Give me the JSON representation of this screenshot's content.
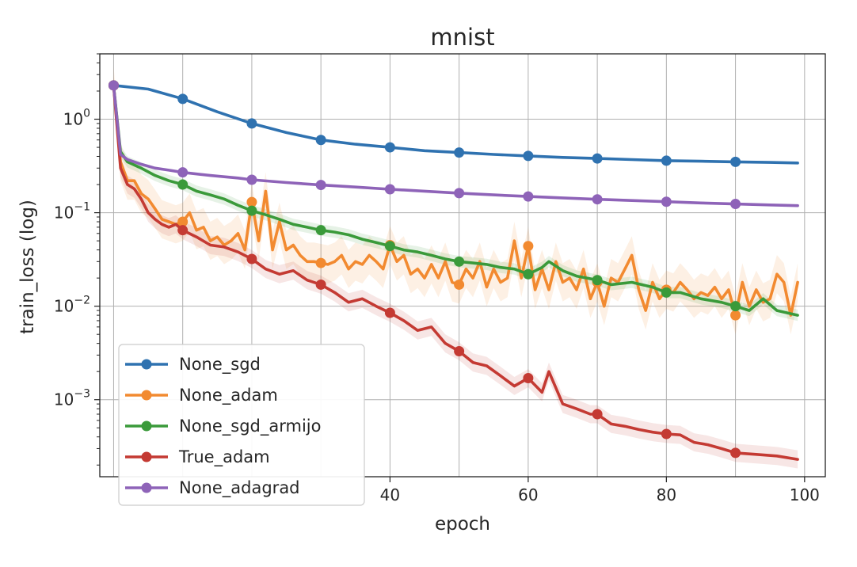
{
  "chart_data": {
    "type": "line",
    "title": "mnist",
    "xlabel": "epoch",
    "ylabel": "train_loss (log)",
    "yscale": "log",
    "xlim": [
      -2,
      103
    ],
    "ylim": [
      0.00015,
      5
    ],
    "grid": true,
    "legend_position": "lower-left",
    "x_ticks": [
      {
        "value": 40,
        "label": "40"
      },
      {
        "value": 60,
        "label": "60"
      },
      {
        "value": 80,
        "label": "80"
      },
      {
        "value": 100,
        "label": "100"
      }
    ],
    "y_ticks": [
      {
        "value": 1,
        "base": "10",
        "exp": "0"
      },
      {
        "value": 0.1,
        "base": "10",
        "exp": "−1"
      },
      {
        "value": 0.01,
        "base": "10",
        "exp": "−2"
      },
      {
        "value": 0.001,
        "base": "10",
        "exp": "−3"
      }
    ],
    "series": [
      {
        "name": "None_sgd",
        "color": "#2f72b0",
        "x": [
          0,
          5,
          10,
          15,
          20,
          25,
          30,
          35,
          40,
          45,
          50,
          55,
          60,
          65,
          70,
          75,
          80,
          85,
          90,
          95,
          99
        ],
        "y": [
          2.3,
          2.1,
          1.65,
          1.2,
          0.9,
          0.72,
          0.6,
          0.54,
          0.5,
          0.46,
          0.44,
          0.42,
          0.405,
          0.39,
          0.38,
          0.37,
          0.36,
          0.355,
          0.35,
          0.345,
          0.34
        ],
        "markers": [
          0,
          10,
          20,
          30,
          40,
          50,
          60,
          70,
          80,
          90
        ]
      },
      {
        "name": "None_adam",
        "color": "#f28a30",
        "x": [
          0,
          1,
          2,
          3,
          4,
          5,
          6,
          7,
          8,
          9,
          10,
          11,
          12,
          13,
          14,
          15,
          16,
          17,
          18,
          19,
          20,
          21,
          22,
          23,
          24,
          25,
          26,
          27,
          28,
          29,
          30,
          31,
          32,
          33,
          34,
          35,
          36,
          37,
          38,
          39,
          40,
          41,
          42,
          43,
          44,
          45,
          46,
          47,
          48,
          49,
          50,
          51,
          52,
          53,
          54,
          55,
          56,
          57,
          58,
          59,
          60,
          61,
          62,
          63,
          64,
          65,
          66,
          67,
          68,
          69,
          70,
          71,
          72,
          73,
          74,
          75,
          76,
          77,
          78,
          79,
          80,
          81,
          82,
          83,
          84,
          85,
          86,
          87,
          88,
          89,
          90,
          91,
          92,
          93,
          94,
          95,
          96,
          97,
          98,
          99
        ],
        "y": [
          2.3,
          0.35,
          0.22,
          0.22,
          0.16,
          0.14,
          0.11,
          0.085,
          0.08,
          0.075,
          0.08,
          0.1,
          0.065,
          0.07,
          0.05,
          0.055,
          0.045,
          0.05,
          0.06,
          0.04,
          0.13,
          0.05,
          0.17,
          0.04,
          0.08,
          0.04,
          0.045,
          0.035,
          0.03,
          0.03,
          0.029,
          0.028,
          0.03,
          0.035,
          0.025,
          0.03,
          0.028,
          0.035,
          0.03,
          0.025,
          0.045,
          0.03,
          0.035,
          0.022,
          0.025,
          0.02,
          0.028,
          0.02,
          0.03,
          0.018,
          0.017,
          0.025,
          0.02,
          0.03,
          0.016,
          0.025,
          0.018,
          0.02,
          0.05,
          0.02,
          0.044,
          0.015,
          0.025,
          0.015,
          0.03,
          0.018,
          0.02,
          0.015,
          0.025,
          0.012,
          0.018,
          0.01,
          0.02,
          0.018,
          0.025,
          0.035,
          0.015,
          0.009,
          0.018,
          0.012,
          0.015,
          0.014,
          0.018,
          0.015,
          0.012,
          0.014,
          0.013,
          0.016,
          0.012,
          0.015,
          0.008,
          0.018,
          0.01,
          0.015,
          0.011,
          0.012,
          0.022,
          0.018,
          0.008,
          0.018
        ],
        "markers": [
          0,
          10,
          20,
          30,
          40,
          50,
          60,
          70,
          80,
          90
        ]
      },
      {
        "name": "None_sgd_armijo",
        "color": "#3a9a3a",
        "x": [
          0,
          1,
          2,
          4,
          6,
          8,
          10,
          12,
          14,
          16,
          18,
          20,
          22,
          24,
          26,
          28,
          30,
          32,
          34,
          36,
          38,
          40,
          42,
          44,
          46,
          48,
          50,
          52,
          54,
          56,
          58,
          60,
          62,
          63,
          65,
          67,
          70,
          72,
          75,
          78,
          80,
          82,
          85,
          88,
          90,
          92,
          94,
          96,
          99
        ],
        "y": [
          2.3,
          0.45,
          0.35,
          0.3,
          0.25,
          0.22,
          0.2,
          0.17,
          0.155,
          0.14,
          0.12,
          0.105,
          0.095,
          0.085,
          0.075,
          0.07,
          0.065,
          0.062,
          0.058,
          0.052,
          0.048,
          0.044,
          0.04,
          0.038,
          0.035,
          0.032,
          0.03,
          0.029,
          0.028,
          0.026,
          0.025,
          0.022,
          0.026,
          0.03,
          0.024,
          0.021,
          0.019,
          0.017,
          0.018,
          0.016,
          0.014,
          0.014,
          0.012,
          0.011,
          0.01,
          0.009,
          0.012,
          0.009,
          0.008
        ],
        "markers": [
          0,
          10,
          20,
          30,
          40,
          50,
          60,
          70,
          80,
          90
        ]
      },
      {
        "name": "True_adam",
        "color": "#c43a33",
        "x": [
          0,
          1,
          2,
          3,
          4,
          5,
          6,
          7,
          8,
          9,
          10,
          12,
          14,
          16,
          18,
          20,
          22,
          24,
          26,
          28,
          30,
          32,
          34,
          36,
          38,
          40,
          42,
          44,
          46,
          48,
          50,
          52,
          54,
          56,
          58,
          60,
          62,
          63,
          65,
          67,
          69,
          70,
          72,
          74,
          76,
          78,
          80,
          82,
          84,
          86,
          88,
          90,
          93,
          96,
          99
        ],
        "y": [
          2.3,
          0.3,
          0.2,
          0.18,
          0.14,
          0.1,
          0.085,
          0.075,
          0.07,
          0.075,
          0.065,
          0.055,
          0.045,
          0.043,
          0.038,
          0.032,
          0.025,
          0.022,
          0.024,
          0.019,
          0.017,
          0.014,
          0.011,
          0.012,
          0.01,
          0.0085,
          0.007,
          0.0055,
          0.006,
          0.004,
          0.0033,
          0.0025,
          0.0023,
          0.0018,
          0.0014,
          0.0017,
          0.0012,
          0.002,
          0.0009,
          0.0008,
          0.0007,
          0.0007,
          0.00055,
          0.00052,
          0.00048,
          0.00045,
          0.00043,
          0.00042,
          0.00035,
          0.00033,
          0.0003,
          0.00027,
          0.00026,
          0.00025,
          0.00023
        ],
        "markers": [
          0,
          10,
          20,
          30,
          40,
          50,
          60,
          70,
          80,
          90
        ]
      },
      {
        "name": "None_adagrad",
        "color": "#8e63b8",
        "x": [
          0,
          1,
          2,
          4,
          6,
          8,
          10,
          14,
          18,
          20,
          25,
          30,
          35,
          40,
          45,
          50,
          55,
          60,
          65,
          70,
          75,
          80,
          85,
          90,
          95,
          99
        ],
        "y": [
          2.3,
          0.42,
          0.37,
          0.33,
          0.3,
          0.285,
          0.27,
          0.25,
          0.235,
          0.225,
          0.21,
          0.198,
          0.188,
          0.178,
          0.17,
          0.162,
          0.155,
          0.149,
          0.144,
          0.139,
          0.135,
          0.131,
          0.127,
          0.124,
          0.121,
          0.119
        ],
        "markers": [
          0,
          10,
          20,
          30,
          40,
          50,
          60,
          70,
          80,
          90
        ]
      }
    ]
  }
}
